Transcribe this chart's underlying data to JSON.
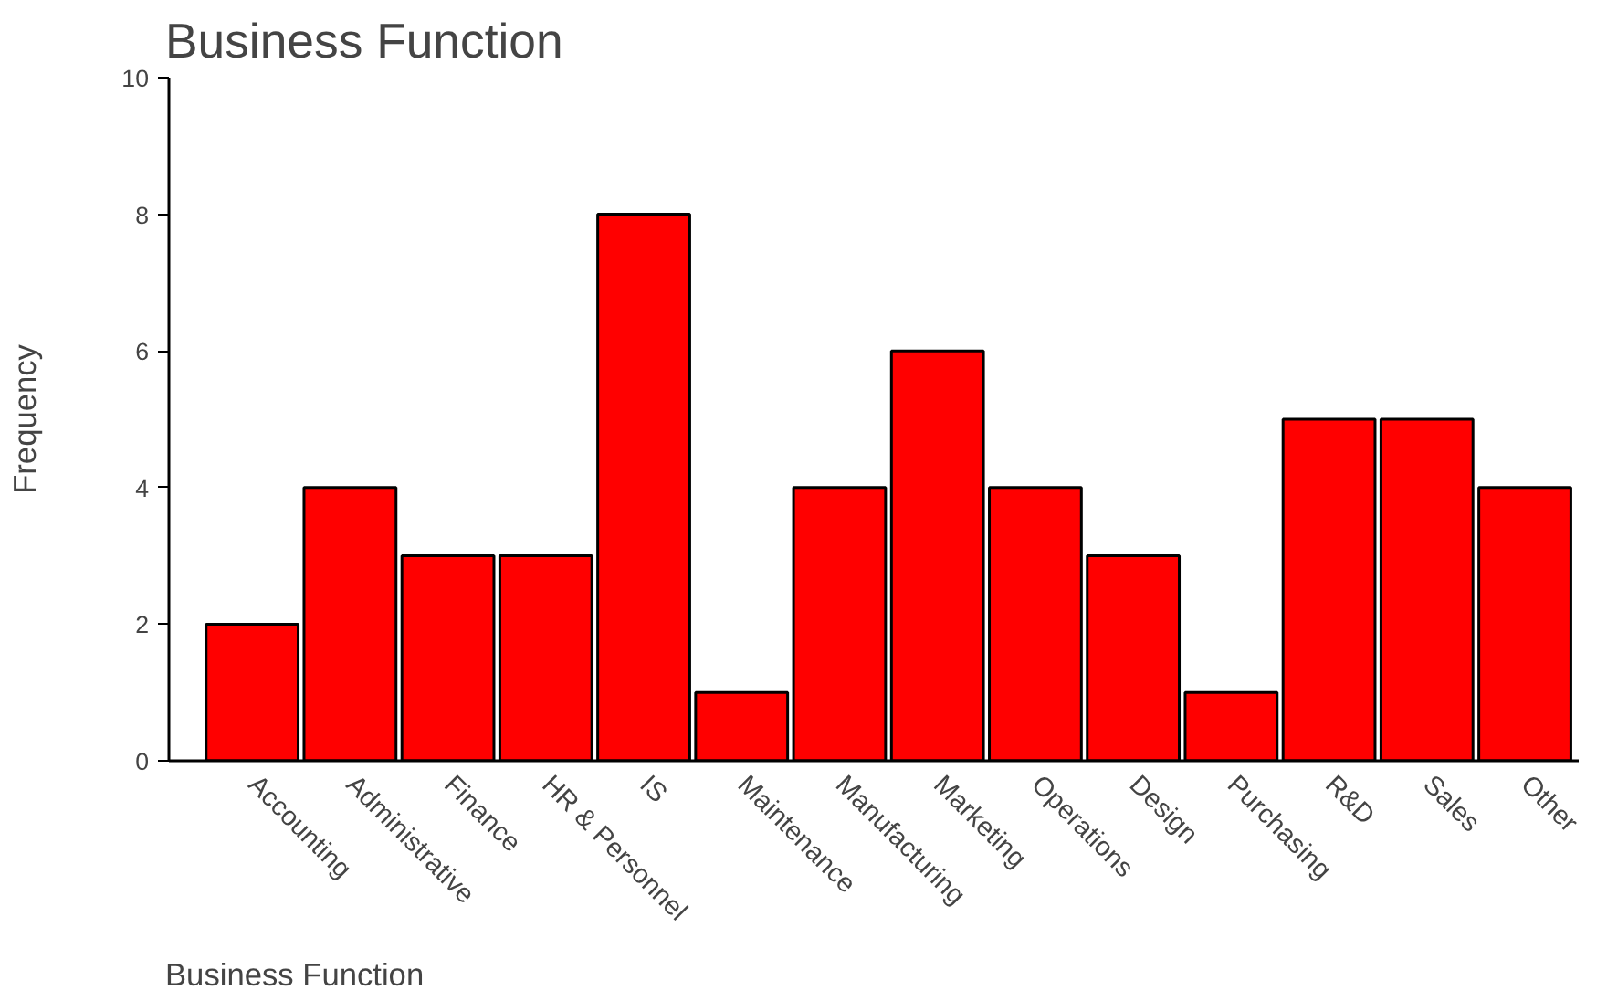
{
  "chart_data": {
    "type": "bar",
    "title": "Business Function",
    "xlabel": "Business Function",
    "ylabel": "Frequency",
    "categories": [
      "Accounting",
      "Administrative",
      "Finance",
      "HR & Personnel",
      "IS",
      "Maintenance",
      "Manufacturing",
      "Marketing",
      "Operations",
      "Design",
      "Purchasing",
      "R&D",
      "Sales",
      "Other"
    ],
    "values": [
      2,
      4,
      3,
      3,
      8,
      1,
      4,
      6,
      4,
      3,
      1,
      5,
      5,
      4
    ],
    "color": "#ff0000",
    "ylim": [
      0,
      10
    ],
    "yticks": [
      0,
      2,
      4,
      6,
      8,
      10
    ],
    "grid": false
  }
}
